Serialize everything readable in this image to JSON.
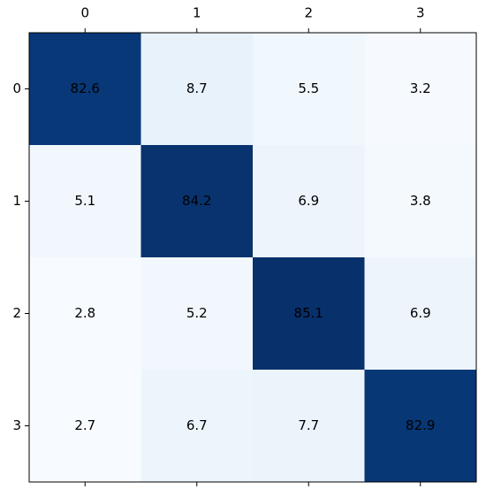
{
  "chart_data": {
    "type": "heatmap",
    "colormap": "Blues",
    "x_categories": [
      0,
      1,
      2,
      3
    ],
    "y_categories": [
      0,
      1,
      2,
      3
    ],
    "values": [
      [
        82.6,
        8.7,
        5.5,
        3.2
      ],
      [
        5.1,
        84.2,
        6.9,
        3.8
      ],
      [
        2.8,
        5.2,
        85.1,
        6.9
      ],
      [
        2.7,
        6.7,
        7.7,
        82.9
      ]
    ],
    "x_axis_position": "top"
  }
}
